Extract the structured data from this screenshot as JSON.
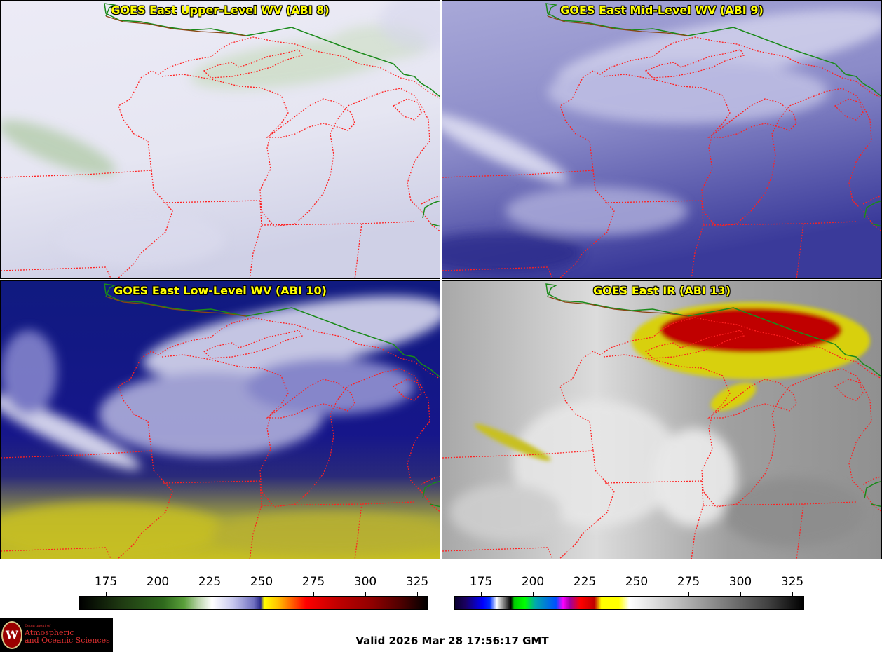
{
  "panels": [
    {
      "title": "GOES East Upper-Level WV (ABI 8)"
    },
    {
      "title": "GOES East Mid-Level WV (ABI 9)"
    },
    {
      "title": "GOES East Low-Level WV (ABI 10)"
    },
    {
      "title": "GOES East IR (ABI 13)"
    }
  ],
  "colorbars": [
    {
      "ticks": [
        "175",
        "200",
        "225",
        "250",
        "275",
        "300",
        "325"
      ]
    },
    {
      "ticks": [
        "175",
        "200",
        "225",
        "250",
        "275",
        "300",
        "325"
      ]
    }
  ],
  "logo": {
    "dept": "Department of",
    "line1": "Atmospheric",
    "line2": "and Oceanic Sciences",
    "seal_letter": "W"
  },
  "valid_time": "Valid 2026 Mar 28 17:56:17 GMT",
  "colors": {
    "title_text": "#ffff00",
    "state_borders": "#ff2020",
    "country_border": "#008000",
    "coast": "#8b4513"
  }
}
